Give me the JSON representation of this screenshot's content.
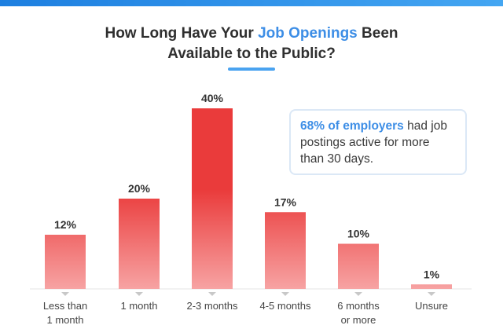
{
  "title": {
    "line1_prefix": "How Long Have Your ",
    "line1_highlight": "Job Openings",
    "line1_suffix": " Been",
    "line2": "Available to the Public?"
  },
  "callout": {
    "highlight": "68% of employers",
    "rest": " had job postings active for more than 30 days."
  },
  "colors": {
    "accent_blue": "#3d8ee6",
    "bar_light": "#f7a3a3",
    "bar_dark": "#ea3b3b",
    "tick_marker": "#c8c8c8"
  },
  "chart_data": {
    "type": "bar",
    "categories": [
      [
        "Less than",
        "1 month"
      ],
      [
        "1 month"
      ],
      [
        "2-3 months"
      ],
      [
        "4-5 months"
      ],
      [
        "6 months",
        "or more"
      ],
      [
        "Unsure"
      ]
    ],
    "values": [
      12,
      20,
      40,
      17,
      10,
      1
    ],
    "value_labels": [
      "12%",
      "20%",
      "40%",
      "17%",
      "10%",
      "1%"
    ],
    "unit": "%",
    "ylim": [
      0,
      40
    ],
    "xlabel": "",
    "ylabel": "",
    "grid": false,
    "legend": "none"
  }
}
